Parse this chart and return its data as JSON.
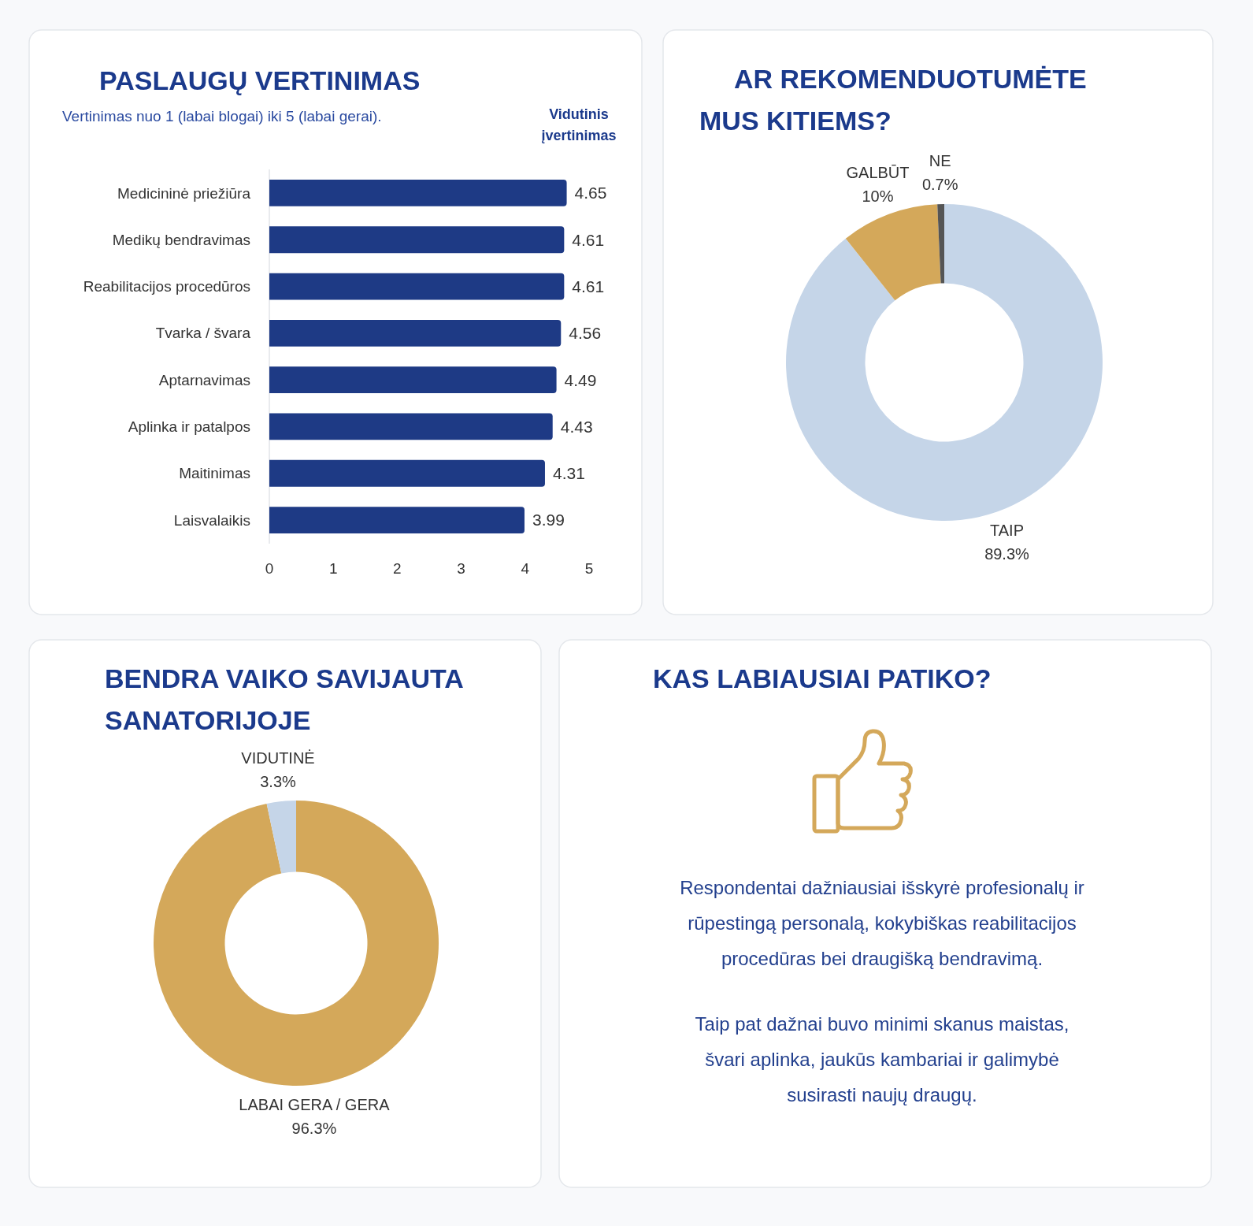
{
  "chart_data": [
    {
      "type": "bar",
      "orientation": "horizontal",
      "title": "PASLAUGŲ VERTINIMAS",
      "subtitle": "Vertinimas nuo 1 (labai blogai) iki 5 (labai gerai).",
      "annotations": [
        "Vidutinis įvertinimas"
      ],
      "categories": [
        "Medicininė priežiūra",
        "Medikų bendravimas",
        "Reabilitacijos procedūros",
        "Tvarka / švara",
        "Aptarnavimas",
        "Aplinka ir patalpos",
        "Maitinimas",
        "Laisvalaikis"
      ],
      "values": [
        4.65,
        4.61,
        4.61,
        4.56,
        4.49,
        4.43,
        4.31,
        3.99
      ],
      "color": "#1e3a85",
      "xlim": [
        0,
        5
      ],
      "xticks": [
        0,
        1,
        2,
        3,
        4,
        5
      ],
      "data_labels": true
    },
    {
      "type": "donut",
      "title": "AR REKOMENDUOTUMĖTE MUS KITIEMS?",
      "categories": [
        "TAIP",
        "GALBŪT",
        "NE"
      ],
      "values": [
        89.3,
        10,
        0.7
      ],
      "colors": [
        "#c5d5e8",
        "#d4a85a",
        "#555555"
      ],
      "value_labels": [
        "89.3%",
        "10%",
        "0.7%"
      ]
    },
    {
      "type": "donut",
      "title": "BENDRA VAIKO SAVIJAUTA SANATORIJOJE",
      "categories": [
        "LABAI GERA / GERA",
        "VIDUTINĖ"
      ],
      "values": [
        96.3,
        3.3
      ],
      "colors": [
        "#d4a85a",
        "#c5d5e8"
      ],
      "value_labels": [
        "96.3%",
        "3.3%"
      ]
    },
    {
      "type": "other",
      "title": "KAS LABIAUSIAI PATIKO?",
      "annotations": [
        "Respondentai dažniausiai išskyrė profesionalų ir rūpestingą personalą, kokybiškas reabilitacijos procedūras bei draugišką bendravimą.",
        "Taip pat dažnai buvo minimi skanus maistas, švari aplinka, jaukūs kambariai ir galimybė susirasti naujų draugų."
      ]
    }
  ]
}
